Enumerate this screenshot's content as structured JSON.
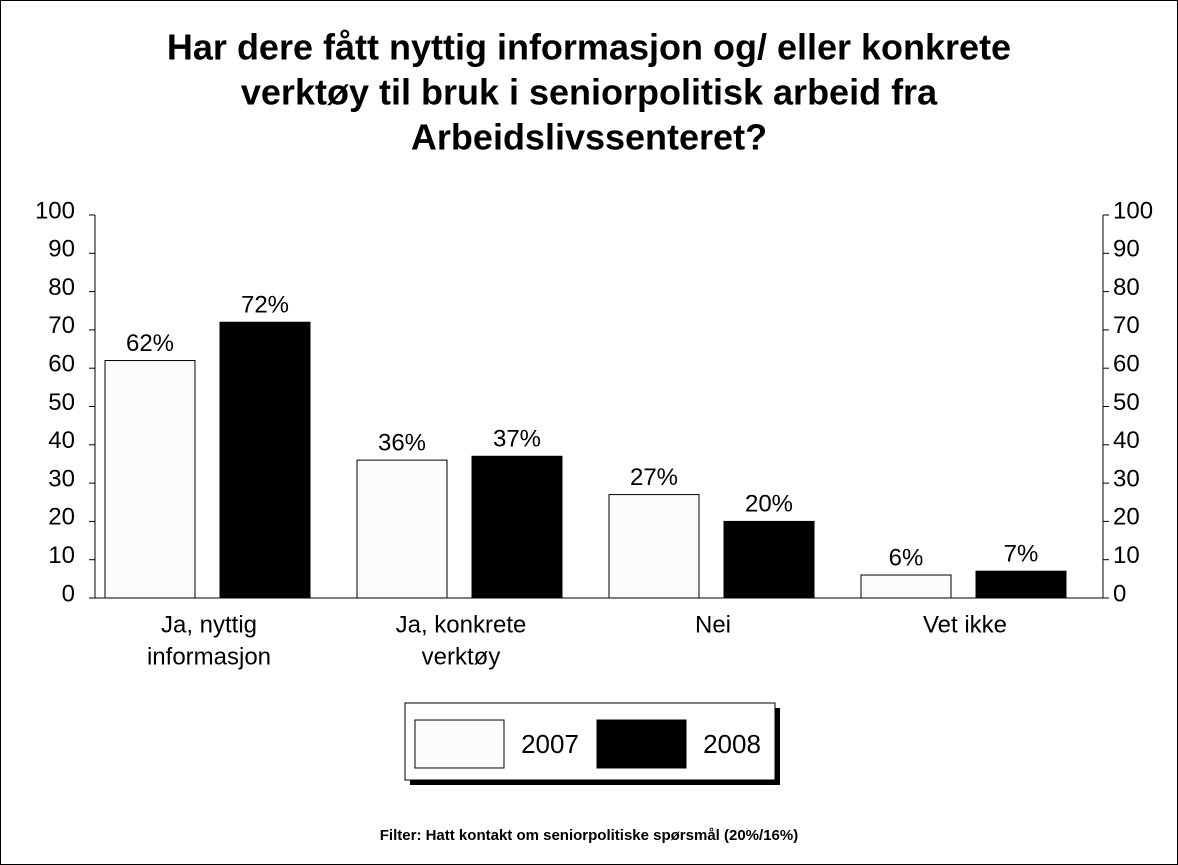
{
  "chart_data": {
    "type": "bar",
    "title": [
      "Har dere fått nyttig informasjon og/ eller konkrete",
      "verktøy til bruk i seniorpolitisk arbeid fra",
      "Arbeidslivssenteret?"
    ],
    "categories": [
      [
        "Ja, nyttig",
        "informasjon"
      ],
      [
        "Ja, konkrete",
        "verktøy"
      ],
      [
        "Nei"
      ],
      [
        "Vet ikke"
      ]
    ],
    "series": [
      {
        "name": "2007",
        "color": "#fcfcfc",
        "values": [
          62,
          36,
          27,
          6
        ],
        "value_labels": [
          "62%",
          "36%",
          "27%",
          "6%"
        ]
      },
      {
        "name": "2008",
        "color": "#000000",
        "values": [
          72,
          37,
          20,
          7
        ],
        "value_labels": [
          "72%",
          "37%",
          "20%",
          "7%"
        ]
      }
    ],
    "ylim": [
      0,
      100
    ],
    "yticks": [
      0,
      10,
      20,
      30,
      40,
      50,
      60,
      70,
      80,
      90,
      100
    ],
    "y2lim": [
      0,
      100
    ],
    "y2ticks": [
      0,
      10,
      20,
      30,
      40,
      50,
      60,
      70,
      80,
      90,
      100
    ],
    "legend": "bottom",
    "footnote": "Filter: Hatt kontakt om seniorpolitiske spørsmål (20%/16%)"
  }
}
